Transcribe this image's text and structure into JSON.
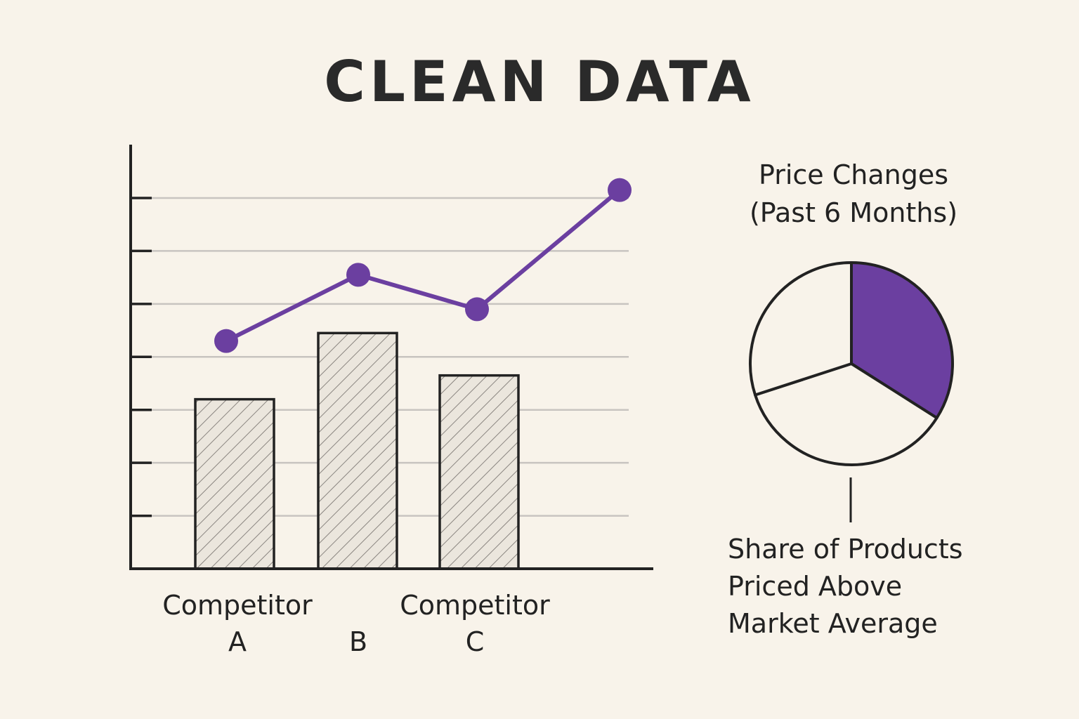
{
  "title": "CLEAN DATA",
  "colors": {
    "background": "#f8f3ea",
    "accent": "#6b3fa0",
    "ink": "#222222",
    "grid": "#c8c4c0",
    "bar_fill": "#ebe6dd"
  },
  "chart_data": [
    {
      "type": "bar",
      "categories": [
        "Competitor A",
        "B",
        "Competitor C"
      ],
      "category_label_lines": [
        [
          "Competitor",
          "A"
        ],
        [
          "B"
        ],
        [
          "Competitor",
          "C"
        ]
      ],
      "bar_values": [
        3.2,
        4.45,
        3.65
      ],
      "line_x_positions": [
        0,
        1,
        2,
        3
      ],
      "line_values": [
        4.3,
        5.55,
        4.9,
        7.15
      ],
      "ylim": [
        0,
        7
      ],
      "y_ticks": [
        1,
        2,
        3,
        4,
        5,
        6,
        7
      ],
      "grid": true,
      "xlabel": "",
      "ylabel": ""
    },
    {
      "type": "pie",
      "title_lines": [
        "Price Changes",
        "(Past 6 Months)"
      ],
      "caption_lines": [
        "Share of Products",
        "Priced Above",
        "Market Average"
      ],
      "slices": [
        {
          "value": 34,
          "highlighted": true
        },
        {
          "value": 36,
          "highlighted": false
        },
        {
          "value": 30,
          "highlighted": false
        }
      ]
    }
  ]
}
